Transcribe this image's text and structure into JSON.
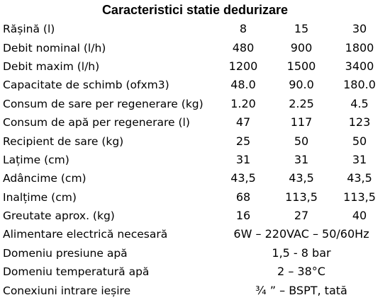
{
  "title": "Caracteristici statie dedurizare",
  "rows": [
    {
      "label": "Rășină (l)",
      "values": [
        "8",
        "15",
        "30"
      ]
    },
    {
      "label": "Debit nominal (l/h)",
      "values": [
        "480",
        "900",
        "1800"
      ]
    },
    {
      "label": "Debit maxim  (l/h)",
      "values": [
        "1200",
        "1500",
        "3400"
      ]
    },
    {
      "label": "Capacitate de schimb (ofxm3)",
      "values": [
        "48.0",
        "90.0",
        "180.0"
      ]
    },
    {
      "label": "Consum de sare per regenerare (kg)",
      "values": [
        "1.20",
        "2.25",
        "4.5"
      ]
    },
    {
      "label": "Consum de apă per regenerare (l)",
      "values": [
        "47",
        "117",
        "123"
      ]
    },
    {
      "label": "Recipient de sare (kg)",
      "values": [
        "25",
        "50",
        "50"
      ]
    },
    {
      "label": "Lațime (cm)",
      "values": [
        "31",
        "31",
        "31"
      ]
    },
    {
      "label": "Adâncime (cm)",
      "values": [
        "43,5",
        "43,5",
        "43,5"
      ]
    },
    {
      "label": "Inalțime (cm)",
      "values": [
        "68",
        "113,5",
        "113,5"
      ]
    },
    {
      "label": "Greutate aprox. (kg)",
      "values": [
        "16",
        "27",
        "40"
      ]
    },
    {
      "label": "Alimentare electrică necesară",
      "value": "6W – 220VAC – 50/60Hz"
    },
    {
      "label": "Domeniu presiune apă",
      "value": "1,5  -  8 bar"
    },
    {
      "label": "Domeniu temperatură apă",
      "value": "2 – 38°C"
    },
    {
      "label": "Conexiuni intrare ieșire",
      "value": "¾ ” – BSPT, tată"
    }
  ]
}
